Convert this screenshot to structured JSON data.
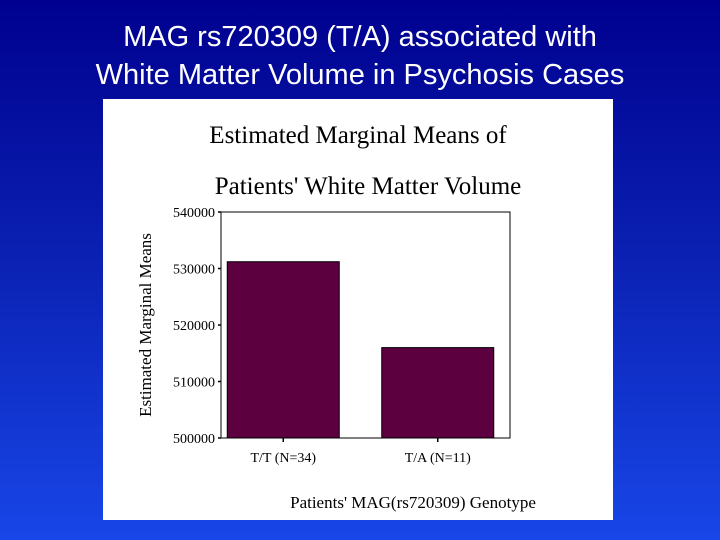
{
  "slide": {
    "title_line1": "MAG rs720309 (T/A) associated with",
    "title_line2": "White Matter Volume in Psychosis Cases"
  },
  "chart_data": {
    "type": "bar",
    "title_line1": "Estimated Marginal Means of",
    "title_line2": "Patients' White Matter Volume",
    "xlabel": "Patients' MAG(rs720309) Genotype",
    "ylabel": "Estimated Marginal Means",
    "categories": [
      "T/T (N=34)",
      "T/A (N=11)"
    ],
    "values": [
      531200,
      516000
    ],
    "ylim": [
      500000,
      540000
    ],
    "yticks": [
      "540000",
      "530000",
      "520000",
      "510000",
      "500000"
    ],
    "ytick_values": [
      540000,
      530000,
      520000,
      510000,
      500000
    ],
    "bar_color": "#5c0040",
    "grid": false
  }
}
